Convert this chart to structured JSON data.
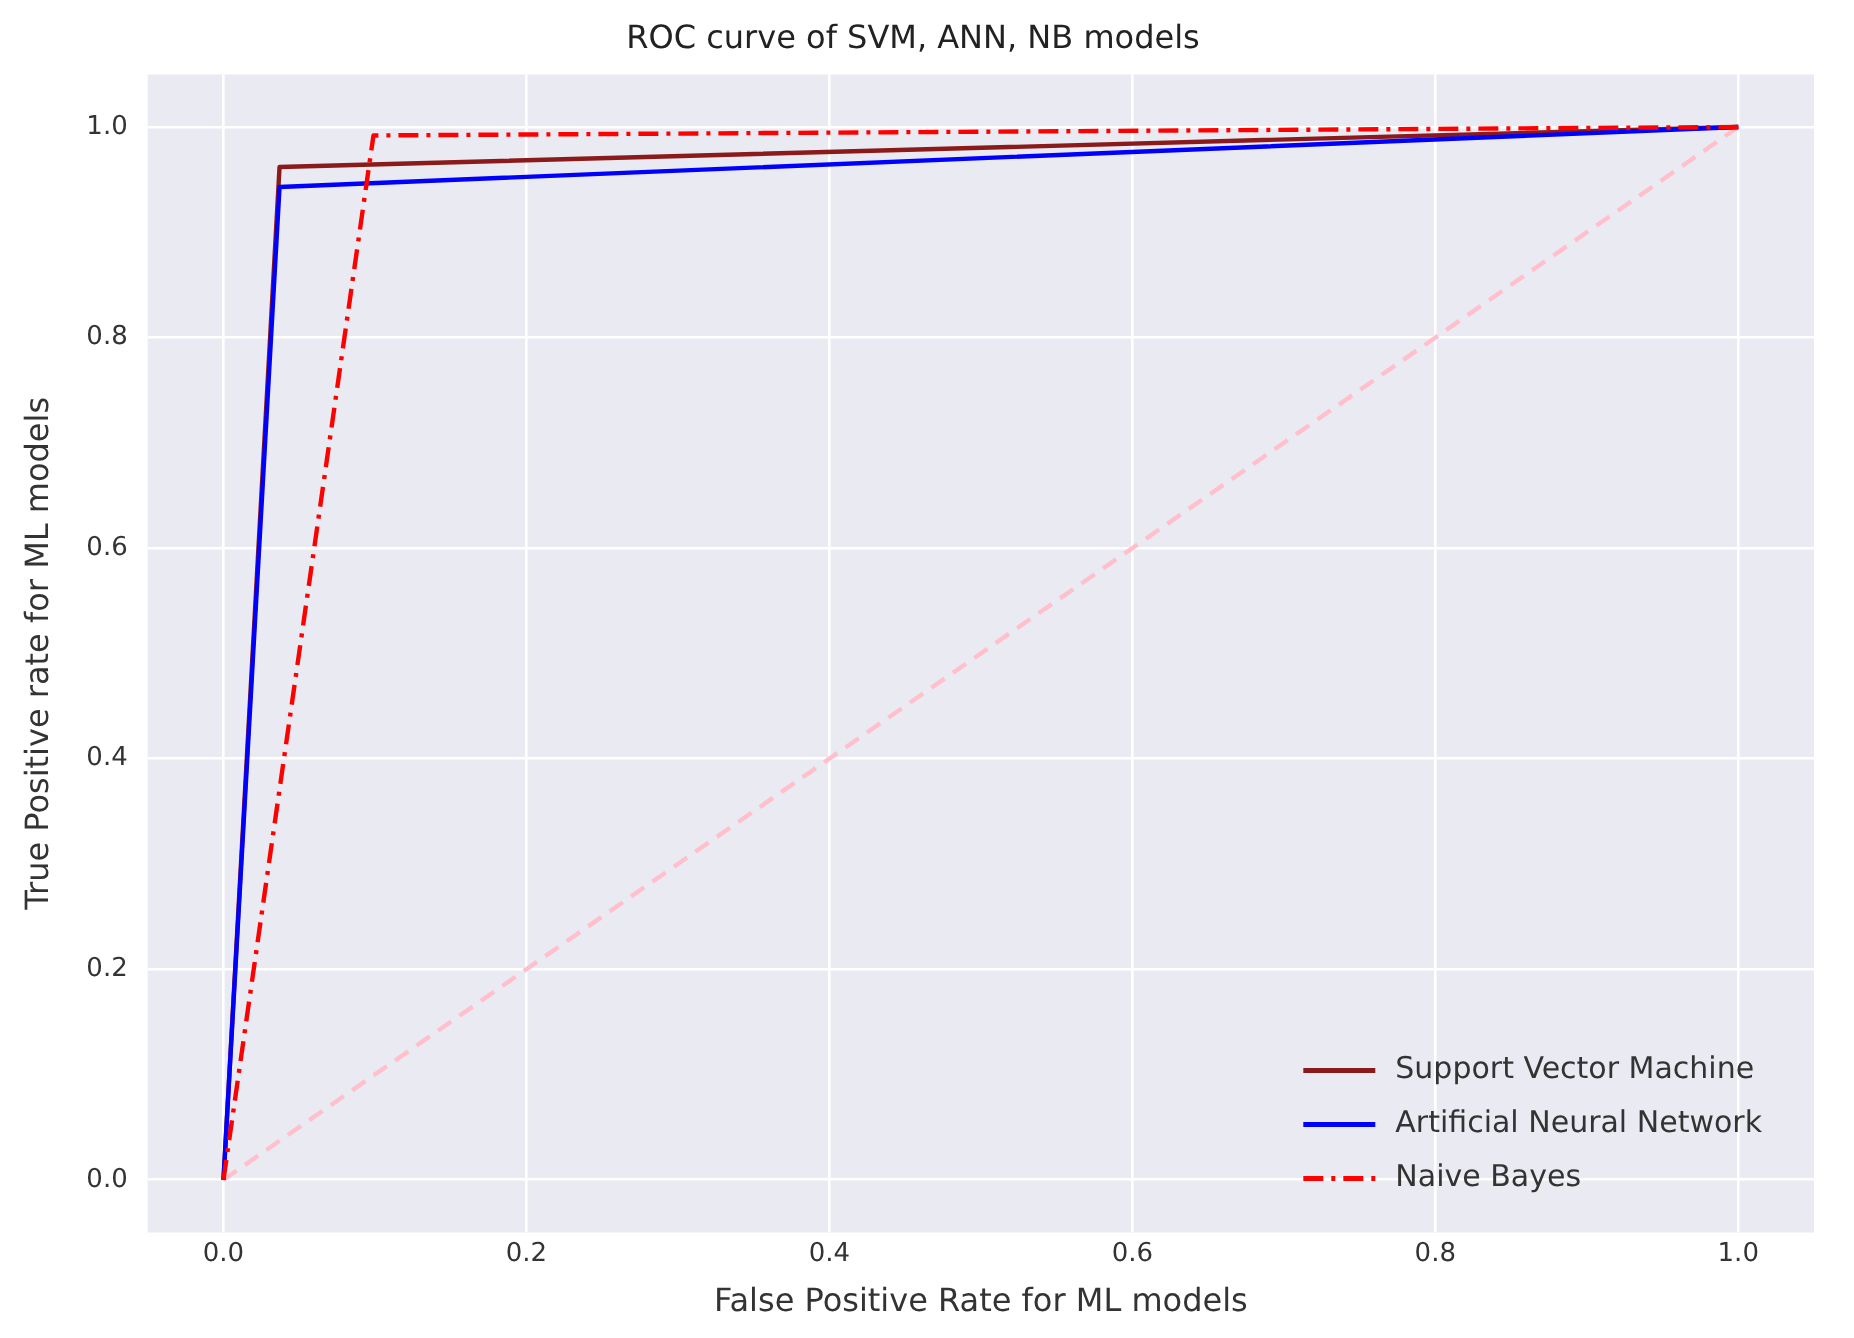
{
  "chart_data": {
    "type": "line",
    "title": "ROC curve of SVM, ANN, NB models",
    "xlabel": "False Positive Rate for ML models",
    "ylabel": "True Positive rate for ML models",
    "xlim": [
      -0.05,
      1.05
    ],
    "ylim": [
      -0.05,
      1.05
    ],
    "xticks": [
      {
        "value": 0,
        "label": "0.0"
      },
      {
        "value": 0.2,
        "label": "0.2"
      },
      {
        "value": 0.4,
        "label": "0.4"
      },
      {
        "value": 0.6,
        "label": "0.6"
      },
      {
        "value": 0.8,
        "label": "0.8"
      },
      {
        "value": 1,
        "label": "1.0"
      }
    ],
    "yticks": [
      {
        "value": 0,
        "label": "0.0"
      },
      {
        "value": 0.2,
        "label": "0.2"
      },
      {
        "value": 0.4,
        "label": "0.4"
      },
      {
        "value": 0.6,
        "label": "0.6"
      },
      {
        "value": 0.8,
        "label": "0.8"
      },
      {
        "value": 1,
        "label": "1.0"
      }
    ],
    "grid": true,
    "legend": "bottom right",
    "marker": "none",
    "series": [
      {
        "name": "Support Vector Machine",
        "color": "#8b1a1a",
        "x": [
          0,
          0.037,
          1
        ],
        "values": [
          0,
          0.962,
          1
        ],
        "line_style": "solid"
      },
      {
        "name": "Artificial Neural Network",
        "color": "#0000ff",
        "x": [
          0,
          0.037,
          1
        ],
        "values": [
          0,
          0.943,
          1
        ],
        "line_style": "solid"
      },
      {
        "name": "Naive Bayes",
        "color": "#ff0000",
        "x": [
          0,
          0.099,
          1
        ],
        "values": [
          0,
          0.992,
          1
        ],
        "line_style": "dashdot"
      },
      {
        "color": "#ffc0cb",
        "x": [
          0,
          1
        ],
        "values": [
          0,
          1
        ],
        "line_style": "dashed"
      }
    ]
  }
}
